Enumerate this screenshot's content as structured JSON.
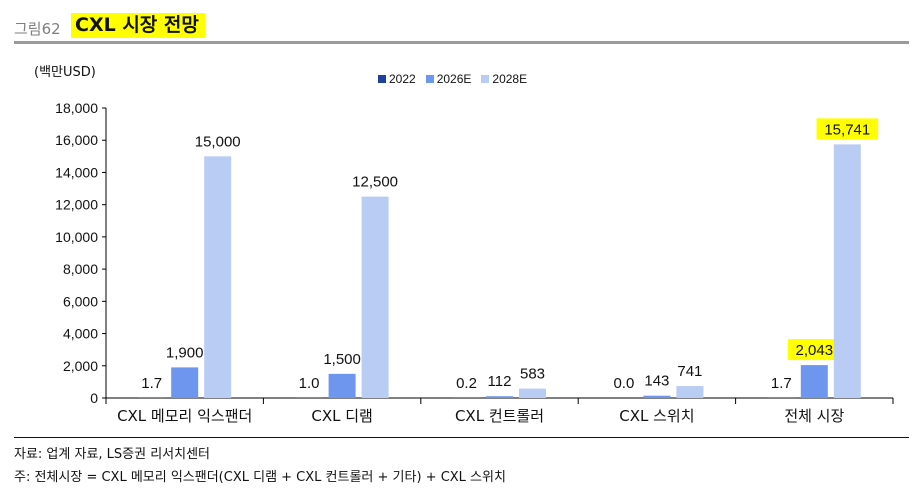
{
  "header": {
    "figure_label": "그림62",
    "title": "CXL 시장 전망"
  },
  "footer": {
    "source": "자료: 업계 자료, LS증권 리서치센터",
    "note": "주: 전체시장 = CXL 메모리 익스팬더(CXL 디램 + CXL 컨트롤러 + 기타) + CXL 스위치"
  },
  "chart_data": {
    "type": "bar",
    "unit_label": "(백만USD)",
    "categories": [
      "CXL 메모리 익스팬더",
      "CXL 디램",
      "CXL 컨트롤러",
      "CXL 스위치",
      "전체 시장"
    ],
    "series": [
      {
        "name": "2022",
        "color": "#1f3f9e",
        "values": [
          1.7,
          1.0,
          0.2,
          0.0,
          1.7
        ],
        "labels": [
          "1.7",
          "1.0",
          "0.2",
          "0.0",
          "1.7"
        ]
      },
      {
        "name": "2026E",
        "color": "#6f96ef",
        "values": [
          1900,
          1500,
          112,
          143,
          2043
        ],
        "labels": [
          "1,900",
          "1,500",
          "112",
          "143",
          "2,043"
        ]
      },
      {
        "name": "2028E",
        "color": "#b9ccf4",
        "values": [
          15000,
          12500,
          583,
          741,
          15741
        ],
        "labels": [
          "15,000",
          "12,500",
          "583",
          "741",
          "15,741"
        ]
      }
    ],
    "y_ticks": [
      "0",
      "2,000",
      "4,000",
      "6,000",
      "8,000",
      "10,000",
      "12,000",
      "14,000",
      "16,000",
      "18,000"
    ],
    "ylim": [
      0,
      18000
    ],
    "highlighted_labels": [
      "2,043",
      "15,741"
    ],
    "highlight_color": "#ffff00",
    "legend_position": "top-center",
    "grid": false
  }
}
